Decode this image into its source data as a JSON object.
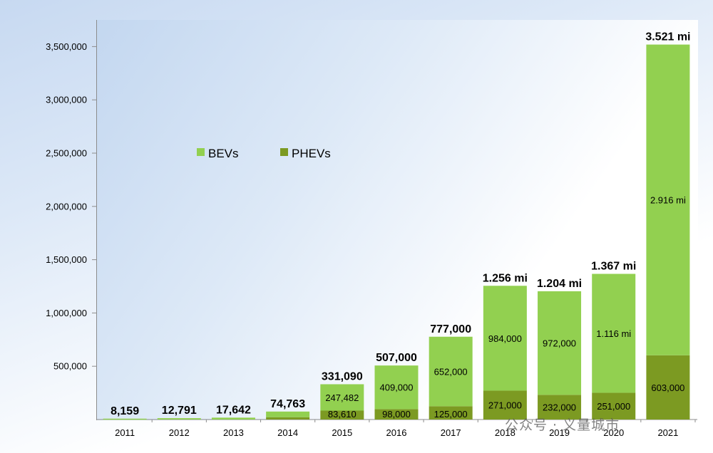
{
  "chart_data": {
    "type": "bar",
    "stacked": true,
    "categories": [
      "2011",
      "2012",
      "2013",
      "2014",
      "2015",
      "2016",
      "2017",
      "2018",
      "2019",
      "2020",
      "2021"
    ],
    "series": [
      {
        "name": "PHEVs",
        "color": "#7c9a22",
        "values": [
          0,
          0,
          0,
          22000,
          83610,
          98000,
          125000,
          271000,
          232000,
          251000,
          603000
        ],
        "labels": [
          "",
          "",
          "",
          "",
          "83,610",
          "98,000",
          "125,000",
          "271,000",
          "232,000",
          "251,000",
          "603,000"
        ]
      },
      {
        "name": "BEVs",
        "color": "#92d050",
        "values": [
          8159,
          12791,
          17642,
          52763,
          247482,
          409000,
          652000,
          984000,
          972000,
          1116000,
          2916000
        ],
        "labels": [
          "",
          "",
          "",
          "",
          "247,482",
          "409,000",
          "652,000",
          "984,000",
          "972,000",
          "1.116 mi",
          "2.916 mi"
        ]
      }
    ],
    "totals": [
      8159,
      12791,
      17642,
      74763,
      331090,
      507000,
      777000,
      1256000,
      1204000,
      1367000,
      3521000
    ],
    "total_labels": [
      "8,159",
      "12,791",
      "17,642",
      "74,763",
      "331,090",
      "507,000",
      "777,000",
      "1.256 mi",
      "1.204 mi",
      "1.367 mi",
      "3.521 mi"
    ],
    "y_ticks": [
      500000,
      1000000,
      1500000,
      2000000,
      2500000,
      3000000,
      3500000
    ],
    "y_tick_labels": [
      "500,000",
      "1,000,000",
      "1,500,000",
      "2,000,000",
      "2,500,000",
      "3,000,000",
      "3,500,000"
    ],
    "ylim": [
      0,
      3750000
    ],
    "legend_position": "top-left inside",
    "grid": false
  },
  "watermark": "公众号 · 义量城市"
}
